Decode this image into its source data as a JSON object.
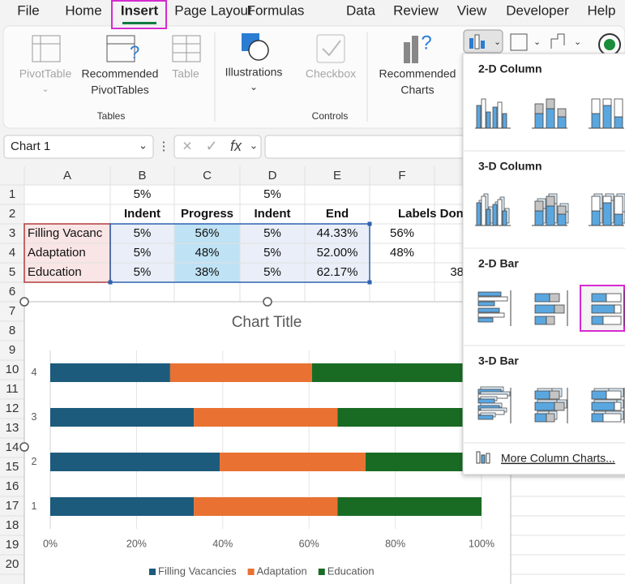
{
  "ribbon": {
    "tabs": [
      "File",
      "Home",
      "Insert",
      "Page Layout",
      "Formulas",
      "Data",
      "Review",
      "View",
      "Developer",
      "Help"
    ],
    "pivot_table": "PivotTable",
    "recommended_pivot_tables": [
      "Recommended",
      "PivotTables"
    ],
    "table": "Table",
    "illustrations": "Illustrations",
    "checkbox": "Checkbox",
    "recommended_charts": [
      "Recommended",
      "Charts"
    ],
    "groups": [
      "Tables",
      "Controls"
    ]
  },
  "formula_bar": {
    "name_box": "Chart 1"
  },
  "sheet": {
    "columns": [
      "A",
      "B",
      "C",
      "D",
      "E",
      "F"
    ],
    "row_numbers": [
      1,
      2,
      3,
      4,
      5,
      6,
      7,
      8,
      9,
      10,
      11,
      12,
      13,
      14,
      15,
      16,
      17,
      18,
      19,
      20
    ],
    "cells": [
      [
        null,
        "5%",
        null,
        "5%",
        null,
        null,
        null
      ],
      [
        null,
        "Indent",
        "Progress",
        "Indent",
        "End",
        "Labels Don",
        null
      ],
      [
        "Filling Vacanc",
        "5%",
        "56%",
        "5%",
        "44.33%",
        "56%",
        null
      ],
      [
        "Adaptation",
        "5%",
        "48%",
        "5%",
        "52.00%",
        "48%",
        null
      ],
      [
        "Education",
        "5%",
        "38%",
        "5%",
        "62.17%",
        null,
        "38"
      ]
    ]
  },
  "chart_data": {
    "type": "bar",
    "orientation": "horizontal",
    "stacking": "percent",
    "title": "Chart Title",
    "categories": [
      "1",
      "2",
      "3",
      "4"
    ],
    "series": [
      {
        "name": "Filling Vacancies",
        "color": "#1c5b7c",
        "values": [
          33.3,
          39.3,
          33.3,
          27.8
        ]
      },
      {
        "name": "Adaptation",
        "color": "#e97132",
        "values": [
          33.3,
          33.8,
          33.3,
          32.9
        ]
      },
      {
        "name": "Education",
        "color": "#196b24",
        "values": [
          33.4,
          26.9,
          33.4,
          39.3
        ]
      }
    ],
    "xlim": [
      0,
      100
    ],
    "xticks": [
      {
        "value": 0,
        "label": "0%"
      },
      {
        "value": 20,
        "label": "20%"
      },
      {
        "value": 40,
        "label": "40%"
      },
      {
        "value": 60,
        "label": "60%"
      },
      {
        "value": 80,
        "label": "80%"
      },
      {
        "value": 100,
        "label": "100%"
      }
    ],
    "grid": true,
    "legend": "bottom"
  },
  "menu": {
    "sections": [
      "2-D Column",
      "3-D Column",
      "2-D Bar",
      "3-D Bar"
    ],
    "more": "More Column Charts..."
  }
}
